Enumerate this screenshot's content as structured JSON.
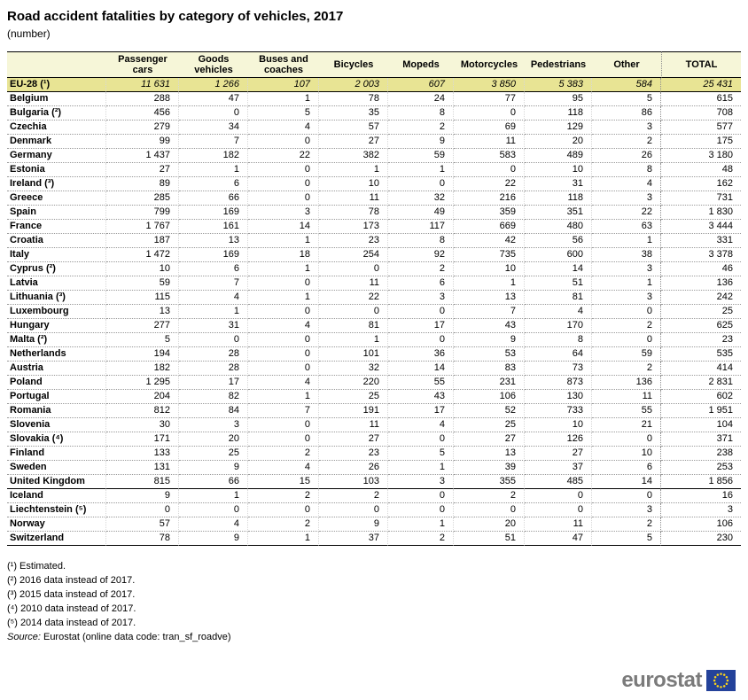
{
  "title": "Road accident fatalities by category of vehicles, 2017",
  "subtitle": "(number)",
  "footnotes": [
    "(¹) Estimated.",
    "(²) 2016 data instead of 2017.",
    "(³) 2015 data instead of 2017.",
    "(⁴) 2010 data instead of 2017.",
    "(⁵) 2014 data instead of 2017."
  ],
  "source": {
    "label": "Source:",
    "text": " Eurostat (online data code: tran_sf_roadve)"
  },
  "logo": {
    "text": "eurostat"
  },
  "colors": {
    "header_bg": "#F6F6D8",
    "eu_row_bg": "#E8E494",
    "flag_blue": "#24429A",
    "star_yellow": "#FFD617",
    "logo_gray": "#7b7b7b"
  },
  "chart_data": {
    "type": "table",
    "title": "Road accident fatalities by category of vehicles, 2017",
    "unit": "number",
    "columns": [
      "Passenger cars",
      "Goods vehicles",
      "Buses and coaches",
      "Bicycles",
      "Mopeds",
      "Motorcycles",
      "Pedestrians",
      "Other",
      "TOTAL"
    ],
    "rows": [
      {
        "name": "EU-28 (¹)",
        "group": "eu-aggregate",
        "values": [
          11631,
          1266,
          107,
          2003,
          607,
          3850,
          5383,
          584,
          25431
        ]
      },
      {
        "name": "Belgium",
        "group": "member",
        "values": [
          288,
          47,
          1,
          78,
          24,
          77,
          95,
          5,
          615
        ]
      },
      {
        "name": "Bulgaria (²)",
        "group": "member",
        "values": [
          456,
          0,
          5,
          35,
          8,
          0,
          118,
          86,
          708
        ]
      },
      {
        "name": "Czechia",
        "group": "member",
        "values": [
          279,
          34,
          4,
          57,
          2,
          69,
          129,
          3,
          577
        ]
      },
      {
        "name": "Denmark",
        "group": "member",
        "values": [
          99,
          7,
          0,
          27,
          9,
          11,
          20,
          2,
          175
        ]
      },
      {
        "name": "Germany",
        "group": "member",
        "values": [
          1437,
          182,
          22,
          382,
          59,
          583,
          489,
          26,
          3180
        ]
      },
      {
        "name": "Estonia",
        "group": "member",
        "values": [
          27,
          1,
          0,
          1,
          1,
          0,
          10,
          8,
          48
        ]
      },
      {
        "name": "Ireland (³)",
        "group": "member",
        "values": [
          89,
          6,
          0,
          10,
          0,
          22,
          31,
          4,
          162
        ]
      },
      {
        "name": "Greece",
        "group": "member",
        "values": [
          285,
          66,
          0,
          11,
          32,
          216,
          118,
          3,
          731
        ]
      },
      {
        "name": "Spain",
        "group": "member",
        "values": [
          799,
          169,
          3,
          78,
          49,
          359,
          351,
          22,
          1830
        ]
      },
      {
        "name": "France",
        "group": "member",
        "values": [
          1767,
          161,
          14,
          173,
          117,
          669,
          480,
          63,
          3444
        ]
      },
      {
        "name": "Croatia",
        "group": "member",
        "values": [
          187,
          13,
          1,
          23,
          8,
          42,
          56,
          1,
          331
        ]
      },
      {
        "name": "Italy",
        "group": "member",
        "values": [
          1472,
          169,
          18,
          254,
          92,
          735,
          600,
          38,
          3378
        ]
      },
      {
        "name": "Cyprus (²)",
        "group": "member",
        "values": [
          10,
          6,
          1,
          0,
          2,
          10,
          14,
          3,
          46
        ]
      },
      {
        "name": "Latvia",
        "group": "member",
        "values": [
          59,
          7,
          0,
          11,
          6,
          1,
          51,
          1,
          136
        ]
      },
      {
        "name": "Lithuania (³)",
        "group": "member",
        "values": [
          115,
          4,
          1,
          22,
          3,
          13,
          81,
          3,
          242
        ]
      },
      {
        "name": "Luxembourg",
        "group": "member",
        "values": [
          13,
          1,
          0,
          0,
          0,
          7,
          4,
          0,
          25
        ]
      },
      {
        "name": "Hungary",
        "group": "member",
        "values": [
          277,
          31,
          4,
          81,
          17,
          43,
          170,
          2,
          625
        ]
      },
      {
        "name": "Malta (²)",
        "group": "member",
        "values": [
          5,
          0,
          0,
          1,
          0,
          9,
          8,
          0,
          23
        ]
      },
      {
        "name": "Netherlands",
        "group": "member",
        "values": [
          194,
          28,
          0,
          101,
          36,
          53,
          64,
          59,
          535
        ]
      },
      {
        "name": "Austria",
        "group": "member",
        "values": [
          182,
          28,
          0,
          32,
          14,
          83,
          73,
          2,
          414
        ]
      },
      {
        "name": "Poland",
        "group": "member",
        "values": [
          1295,
          17,
          4,
          220,
          55,
          231,
          873,
          136,
          2831
        ]
      },
      {
        "name": "Portugal",
        "group": "member",
        "values": [
          204,
          82,
          1,
          25,
          43,
          106,
          130,
          11,
          602
        ]
      },
      {
        "name": "Romania",
        "group": "member",
        "values": [
          812,
          84,
          7,
          191,
          17,
          52,
          733,
          55,
          1951
        ]
      },
      {
        "name": "Slovenia",
        "group": "member",
        "values": [
          30,
          3,
          0,
          11,
          4,
          25,
          10,
          21,
          104
        ]
      },
      {
        "name": "Slovakia (⁴)",
        "group": "member",
        "values": [
          171,
          20,
          0,
          27,
          0,
          27,
          126,
          0,
          371
        ]
      },
      {
        "name": "Finland",
        "group": "member",
        "values": [
          133,
          25,
          2,
          23,
          5,
          13,
          27,
          10,
          238
        ]
      },
      {
        "name": "Sweden",
        "group": "member",
        "values": [
          131,
          9,
          4,
          26,
          1,
          39,
          37,
          6,
          253
        ]
      },
      {
        "name": "United Kingdom",
        "group": "member",
        "values": [
          815,
          66,
          15,
          103,
          3,
          355,
          485,
          14,
          1856
        ]
      },
      {
        "name": "Iceland",
        "group": "non-eu",
        "values": [
          9,
          1,
          2,
          2,
          0,
          2,
          0,
          0,
          16
        ]
      },
      {
        "name": "Liechtenstein (⁵)",
        "group": "non-eu",
        "values": [
          0,
          0,
          0,
          0,
          0,
          0,
          0,
          3,
          3
        ]
      },
      {
        "name": "Norway",
        "group": "non-eu",
        "values": [
          57,
          4,
          2,
          9,
          1,
          20,
          11,
          2,
          106
        ]
      },
      {
        "name": "Switzerland",
        "group": "non-eu",
        "values": [
          78,
          9,
          1,
          37,
          2,
          51,
          47,
          5,
          230
        ]
      }
    ]
  }
}
